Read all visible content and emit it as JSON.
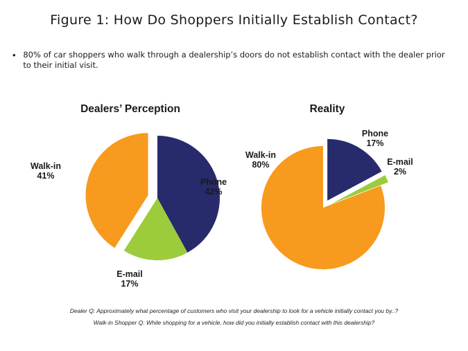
{
  "page": {
    "title": "Figure 1: How Do Shoppers Initially Establish Contact?",
    "bullet": "80% of car shoppers who walk through a dealership’s doors do not establish contact with the dealer prior to their initial visit.",
    "footnotes": [
      "Dealer Q:  Approximately what percentage of customers who visit your dealership to look for a vehicle initially contact you by..?",
      "Walk-in Shopper Q: While shopping for a vehicle, how did you initially establish contact with this dealership?"
    ]
  },
  "chart_data": [
    {
      "type": "pie",
      "title": "Dealers’ Perception",
      "slices": [
        {
          "label": "Phone",
          "value": 42,
          "value_label": "42%",
          "color": "#272a6b",
          "exploded": false
        },
        {
          "label": "E-mail",
          "value": 17,
          "value_label": "17%",
          "color": "#9ccc3c",
          "exploded": false
        },
        {
          "label": "Walk-in",
          "value": 41,
          "value_label": "41%",
          "color": "#f79a1e",
          "exploded": true
        }
      ]
    },
    {
      "type": "pie",
      "title": "Reality",
      "slices": [
        {
          "label": "Phone",
          "value": 17,
          "value_label": "17%",
          "color": "#272a6b",
          "exploded": true
        },
        {
          "label": "E-mail",
          "value": 2,
          "value_label": "2%",
          "color": "#9ccc3c",
          "exploded": true
        },
        {
          "label": "Walk-in",
          "value": 80,
          "value_label": "80%",
          "color": "#f79a1e",
          "exploded": false
        }
      ]
    }
  ]
}
